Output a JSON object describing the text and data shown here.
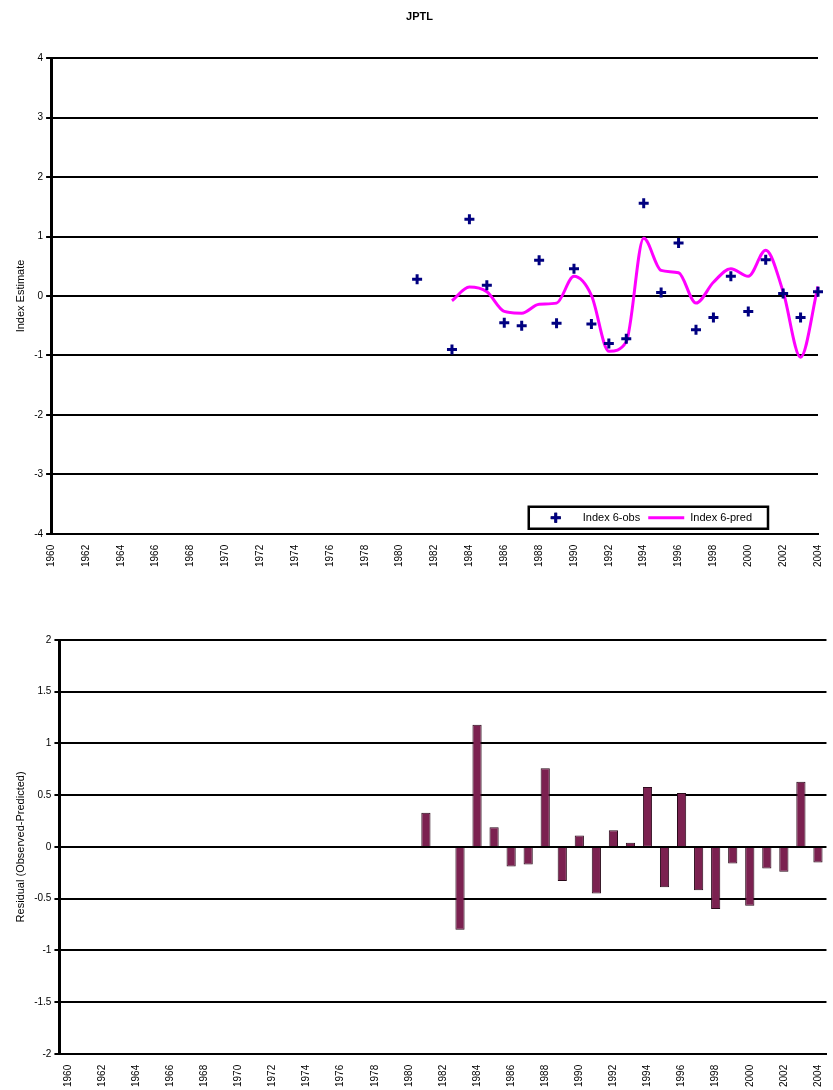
{
  "chart_data": [
    {
      "type": "line",
      "title": "JPTL",
      "ylabel": "Index Estimate",
      "categories": [
        "1960",
        null,
        "1962",
        null,
        "1964",
        null,
        "1966",
        null,
        "1968",
        null,
        "1970",
        null,
        "1972",
        null,
        "1974",
        null,
        "1976",
        null,
        "1978",
        null,
        "1980",
        null,
        "1982",
        null,
        "1984",
        null,
        "1986",
        null,
        "1988",
        null,
        "1990",
        null,
        "1992",
        null,
        "1994",
        null,
        "1996",
        null,
        "1998",
        null,
        "2000",
        null,
        "2002",
        null,
        "2004"
      ],
      "series": [
        {
          "name": "Index 6-obs",
          "type": "scatter",
          "marker": "cross",
          "color": "#000080",
          "values": [
            null,
            null,
            null,
            null,
            null,
            null,
            null,
            null,
            null,
            null,
            null,
            null,
            null,
            null,
            null,
            null,
            null,
            null,
            null,
            null,
            null,
            0.28,
            null,
            -0.9,
            1.29,
            0.18,
            -0.45,
            -0.5,
            0.6,
            -0.46,
            0.46,
            -0.47,
            -0.8,
            -0.72,
            1.56,
            0.06,
            0.89,
            -0.57,
            -0.36,
            0.33,
            -0.26,
            0.61,
            0.04,
            -0.36,
            0.07
          ]
        },
        {
          "name": "Index 6-pred",
          "type": "line",
          "marker": "none",
          "color": "#ff00ff",
          "values": [
            null,
            null,
            null,
            null,
            null,
            null,
            null,
            null,
            null,
            null,
            null,
            null,
            null,
            null,
            null,
            null,
            null,
            null,
            null,
            null,
            null,
            null,
            null,
            -0.08,
            0.15,
            0.07,
            -0.26,
            -0.29,
            -0.14,
            -0.12,
            0.33,
            0.01,
            -0.93,
            -0.77,
            0.97,
            0.43,
            0.39,
            -0.12,
            0.23,
            0.46,
            0.33,
            0.77,
            0.07,
            -1.03,
            0.16
          ]
        }
      ],
      "ylim": [
        -4,
        4
      ],
      "yticks": [
        -4,
        -3,
        -2,
        -1,
        0,
        1,
        2,
        3,
        4
      ],
      "grid": "y",
      "legend": "bottom right"
    },
    {
      "type": "bar",
      "ylabel": "Residual (Observed-Predicted)",
      "categories": [
        "1960",
        null,
        "1962",
        null,
        "1964",
        null,
        "1966",
        null,
        "1968",
        null,
        "1970",
        null,
        "1972",
        null,
        "1974",
        null,
        "1976",
        null,
        "1978",
        null,
        "1980",
        null,
        "1982",
        null,
        "1984",
        null,
        "1986",
        null,
        "1988",
        null,
        "1990",
        null,
        "1992",
        null,
        "1994",
        null,
        "1996",
        null,
        "1998",
        null,
        "2000",
        null,
        "2002",
        null,
        "2004"
      ],
      "color": "#7b2150",
      "values": [
        null,
        null,
        null,
        null,
        null,
        null,
        null,
        null,
        null,
        null,
        null,
        null,
        null,
        null,
        null,
        null,
        null,
        null,
        null,
        null,
        null,
        0.33,
        null,
        -0.8,
        1.18,
        0.19,
        -0.19,
        -0.17,
        0.76,
        -0.33,
        0.11,
        -0.45,
        0.16,
        0.04,
        0.58,
        -0.39,
        0.52,
        -0.42,
        -0.6,
        -0.16,
        -0.57,
        -0.21,
        -0.24,
        0.63,
        -0.15
      ],
      "ylim": [
        -2,
        2
      ],
      "yticks": [
        -2,
        -1.5,
        -1,
        -0.5,
        0,
        0.5,
        1,
        1.5,
        2
      ],
      "grid": "y",
      "legend": false
    }
  ]
}
